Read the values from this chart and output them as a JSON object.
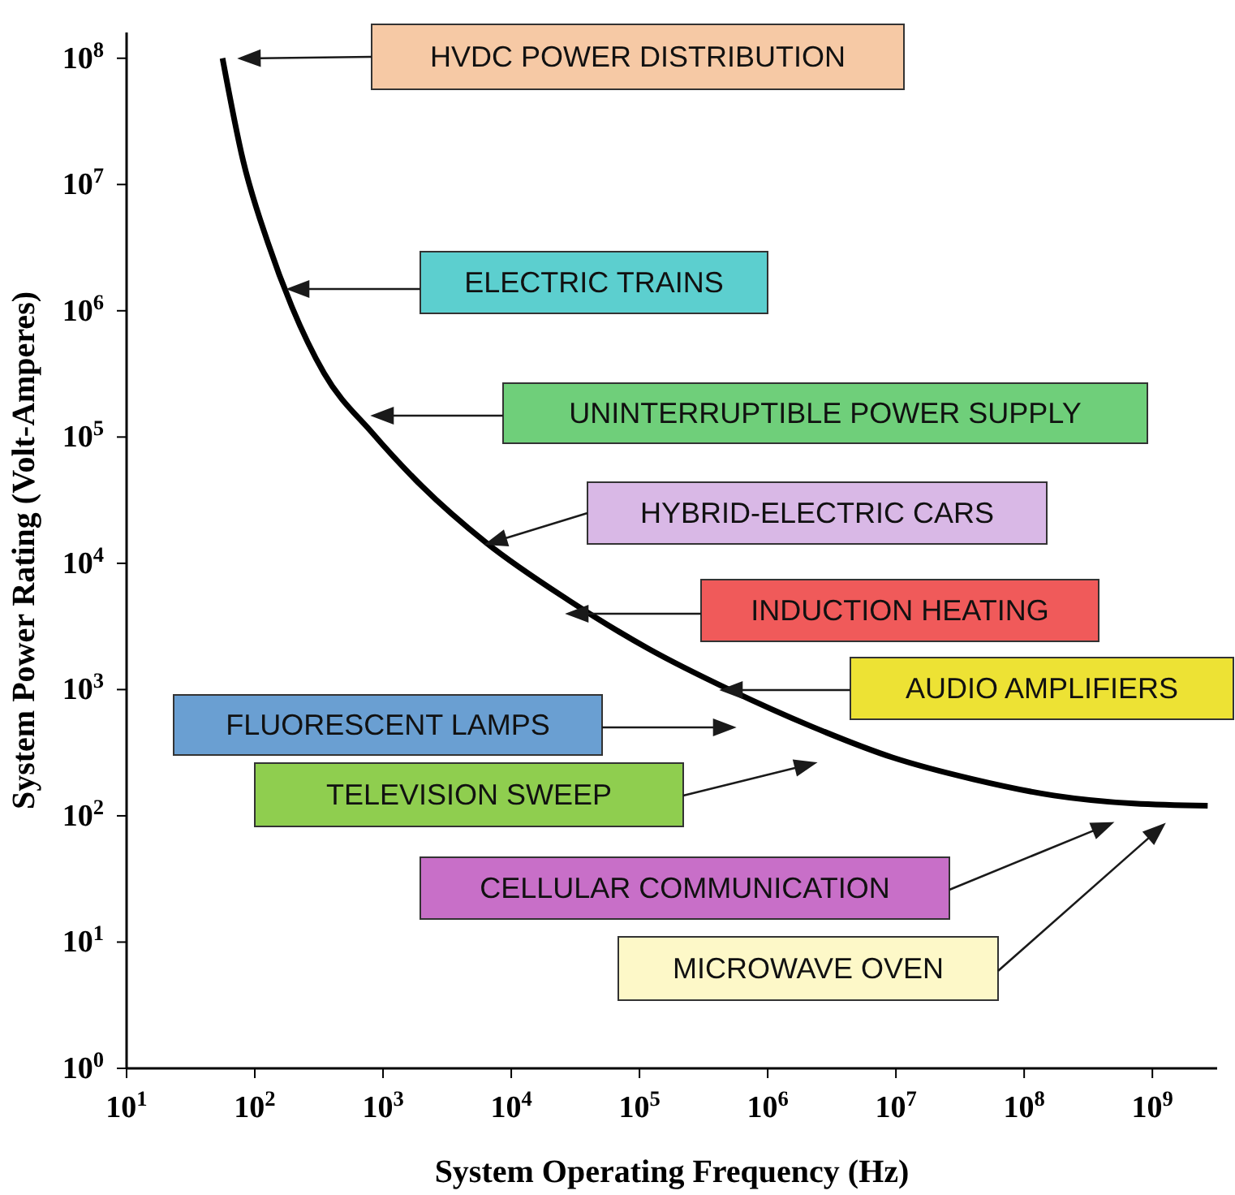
{
  "chart_data": {
    "type": "line",
    "xlabel": "System Operating Frequency (Hz)",
    "ylabel": "System Power Rating (Volt-Amperes)",
    "log": "xy",
    "xlim": [
      10,
      3200000000
    ],
    "ylim": [
      1,
      160000000
    ],
    "xticks": [
      {
        "value": 10,
        "label": "10$^{1}$"
      },
      {
        "value": 100,
        "label": "10$^{2}$"
      },
      {
        "value": 1000,
        "label": "10$^{3}$"
      },
      {
        "value": 10000,
        "label": "10$^{4}$"
      },
      {
        "value": 100000,
        "label": "10$^{5}$"
      },
      {
        "value": 1000000,
        "label": "10$^{6}$"
      },
      {
        "value": 10000000,
        "label": "10$^{7}$"
      },
      {
        "value": 100000000,
        "label": "10$^{8}$"
      },
      {
        "value": 1000000000,
        "label": "10$^{9}$"
      }
    ],
    "yticks": [
      {
        "value": 1,
        "label": "10$^{0}$"
      },
      {
        "value": 10,
        "label": "10$^{1}$"
      },
      {
        "value": 100,
        "label": "10$^{2}$"
      },
      {
        "value": 1000,
        "label": "10$^{3}$"
      },
      {
        "value": 10000,
        "label": "10$^{4}$"
      },
      {
        "value": 100000,
        "label": "10$^{5}$"
      },
      {
        "value": 1000000,
        "label": "10$^{6}$"
      },
      {
        "value": 10000000,
        "label": "10$^{7}$"
      },
      {
        "value": 100000000,
        "label": "10$^{8}$"
      }
    ],
    "series": [
      {
        "color": "#000000",
        "x": [
          56,
          81,
          126,
          195,
          347,
          830,
          2000,
          6400,
          28000,
          118000,
          500000,
          2200000,
          9400000,
          40000000,
          170000000,
          720000000,
          2700000000
        ],
        "values": [
          100000000,
          15500000,
          3500000,
          1070000,
          320000,
          107000,
          41000,
          14500,
          5100,
          2100,
          1000,
          510,
          290,
          195,
          145,
          125,
          120
        ]
      }
    ],
    "annotations": [
      "HVDC POWER DISTRIBUTION",
      "ELECTRIC TRAINS",
      "UNINTERRUPTIBLE POWER SUPPLY",
      "HYBRID-ELECTRIC CARS",
      "INDUCTION HEATING",
      "AUDIO AMPLIFIERS",
      "FLUORESCENT LAMPS",
      "TELEVISION SWEEP",
      "CELLULAR COMMUNICATION",
      "MICROWAVE OVEN"
    ]
  }
}
